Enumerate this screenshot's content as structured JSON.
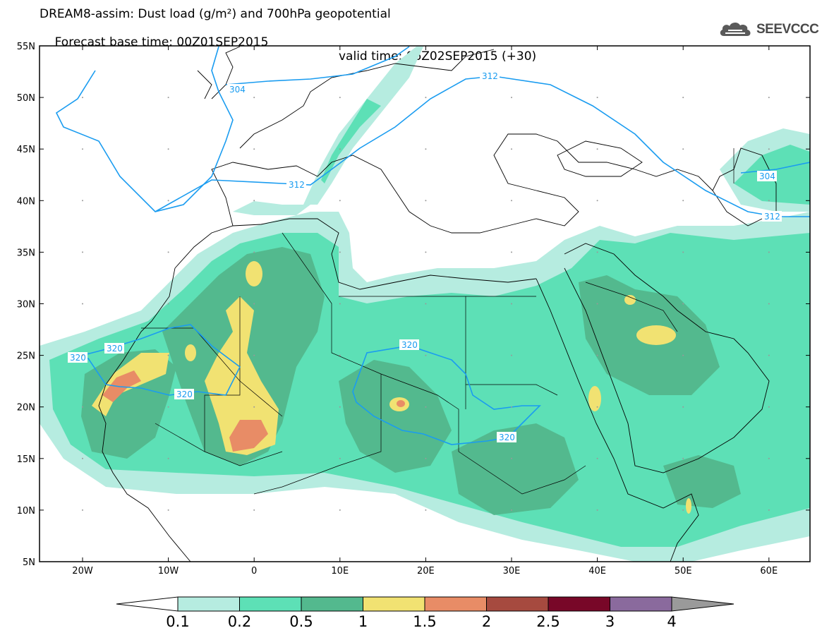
{
  "header": {
    "line1": "DREAM8-assim: Dust load (g/m²) and 700hPa geopotential",
    "line2_base": "Forecast base time: 00Z01SEP2015",
    "line2_valid": "valid time: 06Z02SEP2015 (+30)"
  },
  "logo": {
    "text": "SEEVCCC",
    "icon": "cloud-logo-icon"
  },
  "map": {
    "lat_labels": [
      "55N",
      "50N",
      "45N",
      "40N",
      "35N",
      "30N",
      "25N",
      "20N",
      "15N",
      "10N",
      "5N"
    ],
    "lon_labels": [
      "20W",
      "10W",
      "0",
      "10E",
      "20E",
      "30E",
      "40E",
      "50E",
      "60E"
    ],
    "contour_labels": [
      "304",
      "312",
      "312",
      "312",
      "304",
      "320",
      "320",
      "320",
      "320",
      "320"
    ]
  },
  "colorbar": {
    "labels": [
      "0.1",
      "0.2",
      "0.5",
      "1",
      "1.5",
      "2",
      "2.5",
      "3",
      "4"
    ],
    "colors": [
      "#b6ece0",
      "#5de0b6",
      "#53b98e",
      "#f1e272",
      "#e88c66",
      "#a64a3f",
      "#780728",
      "#8a6a9d",
      "#9a9a9a"
    ]
  }
}
